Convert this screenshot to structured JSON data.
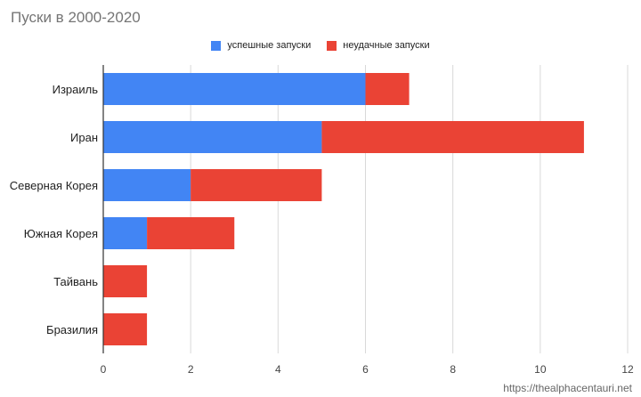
{
  "title": "Пуски в 2000-2020",
  "watermark": "https://thealphacentauri.net",
  "colors": {
    "success": "#4285F4",
    "failure": "#EA4335",
    "grid": "#d9d9d9",
    "axis": "#333333"
  },
  "chart_data": {
    "type": "bar",
    "orientation": "horizontal",
    "stacked": true,
    "title": "Пуски в 2000-2020",
    "categories": [
      "Израиль",
      "Иран",
      "Северная Корея",
      "Южная Корея",
      "Тайвань",
      "Бразилия"
    ],
    "series": [
      {
        "name": "успешные запуски",
        "values": [
          6,
          5,
          2,
          1,
          0,
          0
        ]
      },
      {
        "name": "неудачные запуски",
        "values": [
          1,
          6,
          3,
          2,
          1,
          1
        ]
      }
    ],
    "xlim": [
      0,
      12
    ],
    "xticks": [
      0,
      2,
      4,
      6,
      8,
      10,
      12
    ],
    "grid": true,
    "legend": "top-center"
  }
}
